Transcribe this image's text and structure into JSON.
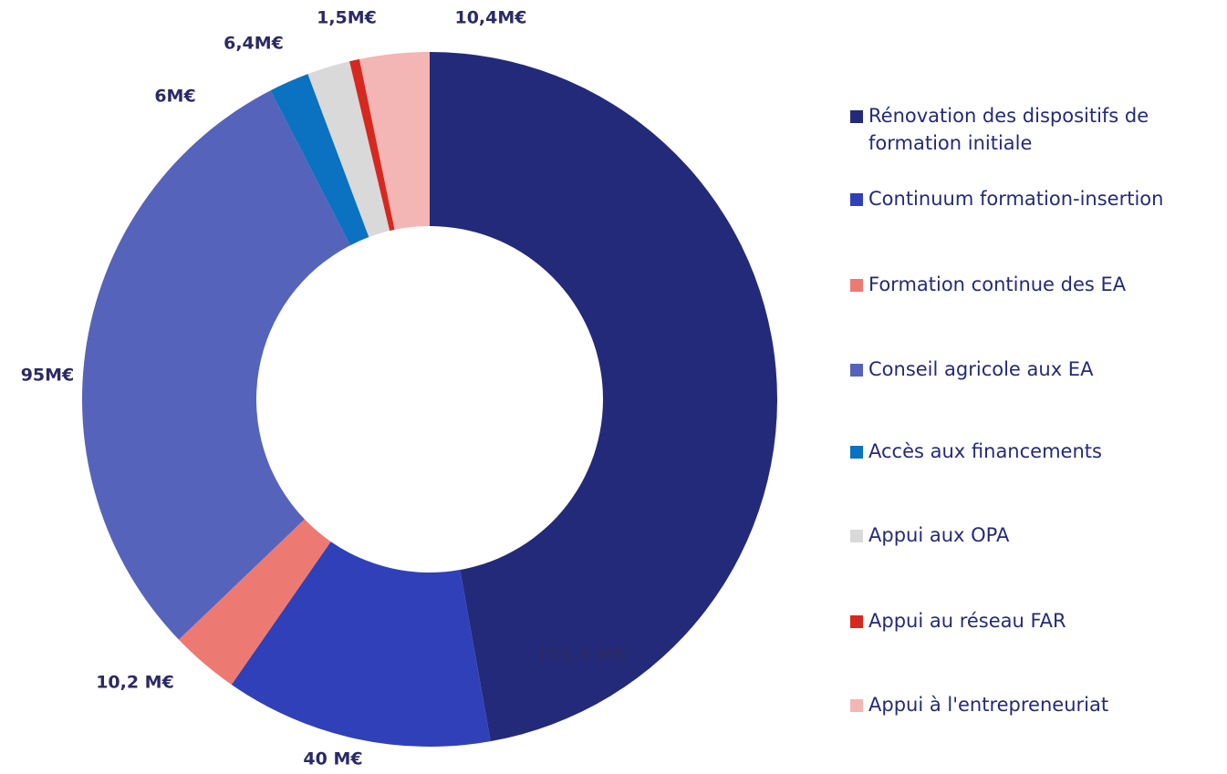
{
  "chart_data": {
    "type": "donut",
    "categories": [
      "Rénovation des dispositifs de formation initiale",
      "Continuum formation-insertion",
      "Formation continue des EA",
      "Conseil agricole aux EA",
      "Accès aux financements",
      "Appui aux OPA",
      "Appui au réseau FAR",
      "Appui à l'entrepreneuriat"
    ],
    "values": [
      151.5,
      40,
      10.2,
      95,
      6,
      6.4,
      1.5,
      10.4
    ],
    "value_labels": [
      "151,5 M€",
      "40 M€",
      "10,2 M€",
      "95M€",
      "6M€",
      "6,4M€",
      "1,5M€",
      "10,4M€"
    ],
    "colors": [
      "#232a7a",
      "#3040b8",
      "#ec7a72",
      "#5563bb",
      "#0a72c0",
      "#d9d9d9",
      "#d6281f",
      "#f4b6b5"
    ],
    "legend": "right"
  }
}
